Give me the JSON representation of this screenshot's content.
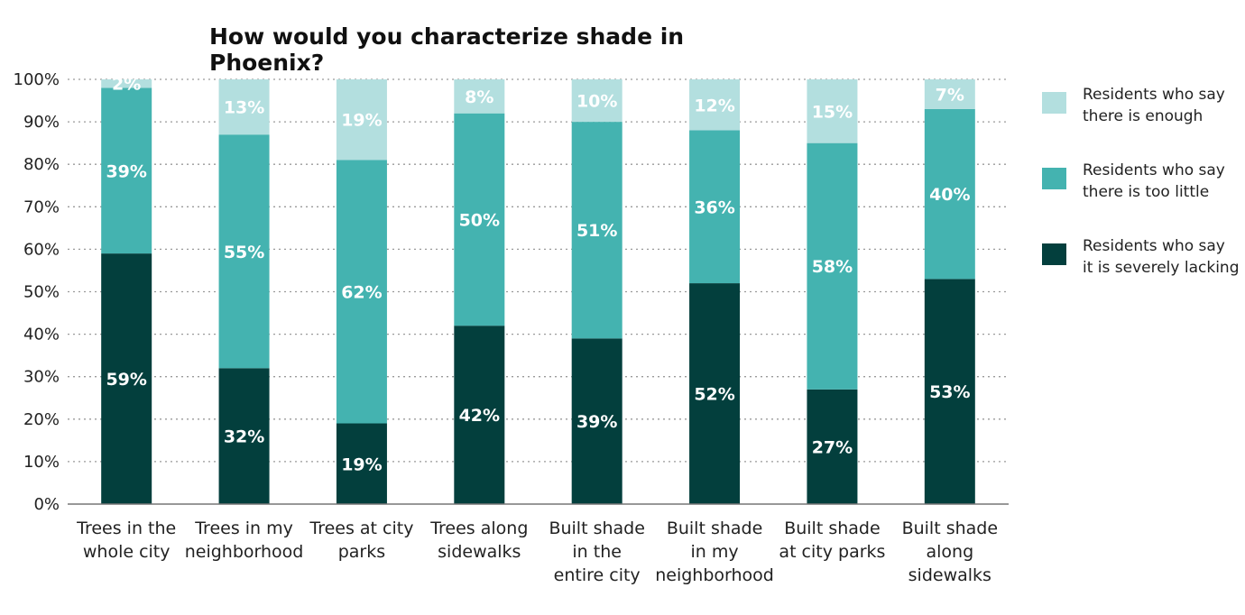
{
  "chart_data": {
    "type": "bar",
    "stacked": true,
    "title": "How would you characterize shade in Phoenix?",
    "xlabel": "",
    "ylabel": "",
    "ylim": [
      0,
      100
    ],
    "yticks": [
      "0%",
      "10%",
      "20%",
      "30%",
      "40%",
      "50%",
      "60%",
      "70%",
      "80%",
      "90%",
      "100%"
    ],
    "grid": "horizontal dotted",
    "legend_position": "right",
    "categories": [
      [
        "Trees in the",
        "whole city"
      ],
      [
        "Trees in my",
        "neighborhood"
      ],
      [
        "Trees at city",
        "parks"
      ],
      [
        "Trees along",
        "sidewalks"
      ],
      [
        "Built shade",
        "in the",
        "entire city"
      ],
      [
        "Built shade",
        "in my",
        "neighborhood"
      ],
      [
        "Built shade",
        "at city parks"
      ],
      [
        "Built shade",
        "along",
        "sidewalks"
      ]
    ],
    "series": [
      {
        "name": [
          "Residents who say",
          "it is severely lacking"
        ],
        "color": "#033f3d",
        "values": [
          59,
          32,
          19,
          42,
          39,
          52,
          27,
          53
        ]
      },
      {
        "name": [
          "Residents who say",
          "there is too little"
        ],
        "color": "#44b3b0",
        "values": [
          39,
          55,
          62,
          50,
          51,
          36,
          58,
          40
        ]
      },
      {
        "name": [
          "Residents who say",
          "there is enough"
        ],
        "color": "#b3dfdf",
        "values": [
          2,
          13,
          19,
          8,
          10,
          12,
          15,
          7
        ]
      }
    ]
  }
}
